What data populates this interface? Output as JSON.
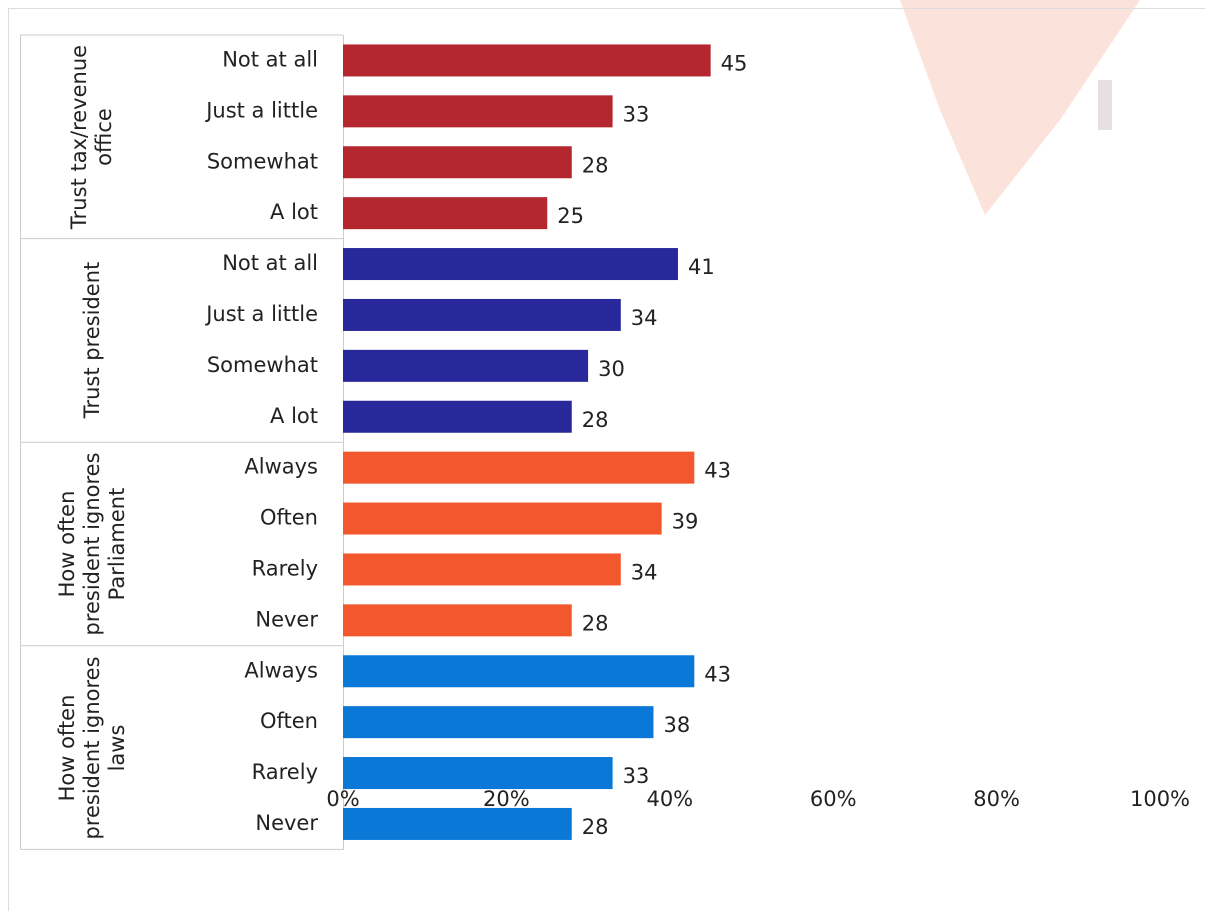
{
  "chart_data": {
    "type": "grouped-bar",
    "orientation": "horizontal",
    "groups": [
      {
        "name": "Trust tax/revenue office",
        "color": "#b5272f",
        "categories": [
          "Not at all",
          "Just a little",
          "Somewhat",
          "A lot"
        ],
        "values": [
          45,
          33,
          28,
          25
        ]
      },
      {
        "name": "Trust president",
        "color": "#28289a",
        "categories": [
          "Not at all",
          "Just a little",
          "Somewhat",
          "A lot"
        ],
        "values": [
          41,
          34,
          30,
          28
        ]
      },
      {
        "name": "How often president ignores Parliament",
        "color": "#f2572d",
        "categories": [
          "Always",
          "Often",
          "Rarely",
          "Never"
        ],
        "values": [
          43,
          39,
          34,
          28
        ]
      },
      {
        "name": "How often president ignores laws",
        "color": "#0a78d6",
        "categories": [
          "Always",
          "Often",
          "Rarely",
          "Never"
        ],
        "values": [
          43,
          38,
          33,
          28
        ]
      }
    ],
    "xlim": [
      0,
      100
    ],
    "xticks": [
      {
        "value": 0,
        "label": "0%"
      },
      {
        "value": 20,
        "label": "20%"
      },
      {
        "value": 40,
        "label": "40%"
      },
      {
        "value": 60,
        "label": "60%"
      },
      {
        "value": 80,
        "label": "80%"
      },
      {
        "value": 100,
        "label": "100%"
      }
    ]
  }
}
